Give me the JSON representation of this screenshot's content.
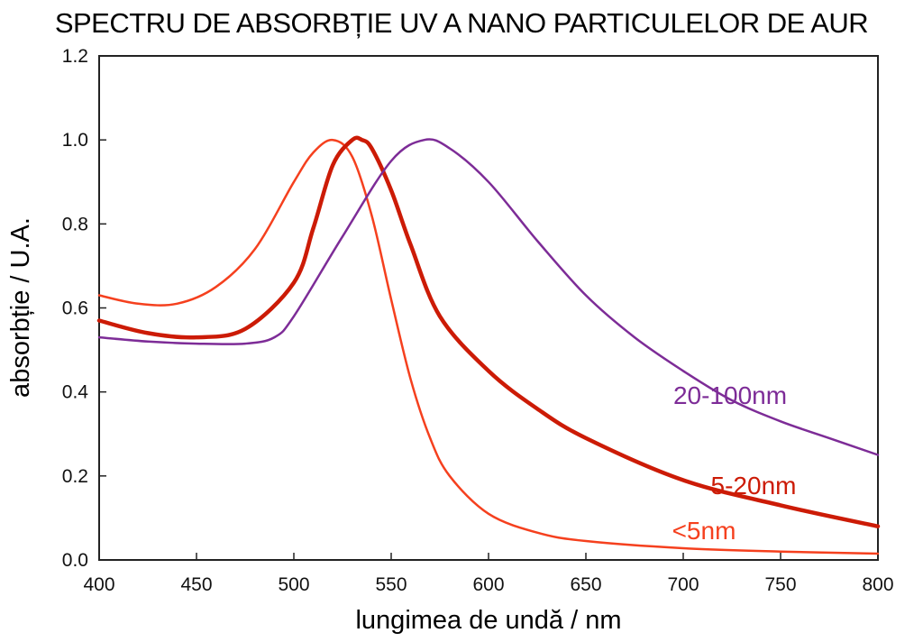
{
  "chart_data": {
    "type": "line",
    "title": "SPECTRU DE ABSORBȚIE UV A NANO PARTICULELOR DE AUR",
    "xlabel": "lungimea de undă / nm",
    "ylabel": "absorbție / U.A.",
    "xlim": [
      400,
      800
    ],
    "ylim": [
      0,
      1.2
    ],
    "xticks": [
      "400",
      "450",
      "500",
      "550",
      "600",
      "650",
      "700",
      "750",
      "800"
    ],
    "yticks": [
      "0.0",
      "0.2",
      "0.4",
      "0.6",
      "0.8",
      "1.0",
      "1.2"
    ],
    "grid": false,
    "legend": "inline labels at right",
    "series": [
      {
        "name": "<5nm",
        "color": "#f5401e",
        "x": [
          400,
          420,
          440,
          460,
          480,
          500,
          510,
          520,
          530,
          540,
          550,
          560,
          570,
          580,
          600,
          625,
          650,
          700,
          750,
          800
        ],
        "y": [
          0.63,
          0.61,
          0.61,
          0.65,
          0.74,
          0.9,
          0.97,
          1.0,
          0.96,
          0.82,
          0.62,
          0.43,
          0.29,
          0.2,
          0.11,
          0.065,
          0.045,
          0.028,
          0.02,
          0.015
        ]
      },
      {
        "name": "5-20nm",
        "color": "#cc1b06",
        "x": [
          400,
          425,
          450,
          475,
          500,
          510,
          520,
          530,
          535,
          540,
          550,
          560,
          575,
          600,
          625,
          650,
          700,
          750,
          800
        ],
        "y": [
          0.57,
          0.54,
          0.53,
          0.55,
          0.66,
          0.79,
          0.94,
          1.0,
          1.0,
          0.98,
          0.88,
          0.75,
          0.58,
          0.45,
          0.36,
          0.29,
          0.19,
          0.13,
          0.08
        ]
      },
      {
        "name": "20-100nm",
        "color": "#7d2c97",
        "x": [
          400,
          425,
          450,
          475,
          490,
          500,
          525,
          550,
          567,
          580,
          600,
          625,
          650,
          675,
          700,
          725,
          750,
          775,
          800
        ],
        "y": [
          0.53,
          0.52,
          0.515,
          0.515,
          0.53,
          0.58,
          0.77,
          0.95,
          1.0,
          0.98,
          0.9,
          0.76,
          0.63,
          0.53,
          0.45,
          0.38,
          0.33,
          0.29,
          0.25
        ]
      }
    ]
  }
}
